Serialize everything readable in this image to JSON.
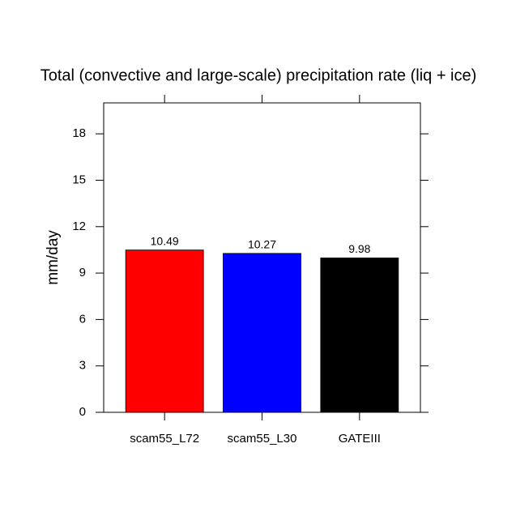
{
  "chart_data": {
    "type": "bar",
    "title": "Total (convective and large-scale) precipitation rate (liq + ice)",
    "y_label": "mm/day",
    "categories": [
      "scam55_L72",
      "scam55_L30",
      "GATEIII"
    ],
    "values": [
      10.49,
      10.27,
      9.98
    ],
    "colors": [
      "#ff0000",
      "#0000ff",
      "#000000"
    ],
    "ylim": [
      0,
      20
    ],
    "yticks": [
      0,
      3,
      6,
      9,
      12,
      15,
      18
    ]
  }
}
